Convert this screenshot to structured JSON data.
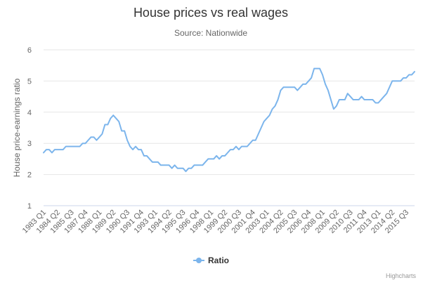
{
  "chart_data": {
    "type": "line",
    "title": "House prices vs real wages",
    "subtitle": "Source: Nationwide",
    "ylabel": "House price-earnings ratio",
    "xlabel": "",
    "ylim": [
      1,
      6
    ],
    "yticks": [
      "1",
      "2",
      "3",
      "4",
      "5",
      "6"
    ],
    "grid": true,
    "legend_position": "bottom-center",
    "credits": "Highcharts",
    "colors": {
      "series": "#7cb5ec",
      "grid": "#e6e6e6",
      "title": "#333333",
      "text": "#666666",
      "credits": "#999999"
    },
    "x_tick_labels": [
      "1983 Q1",
      "1984 Q2",
      "1985 Q3",
      "1987 Q4",
      "1988 Q1",
      "1989 Q2",
      "1990 Q3",
      "1991 Q4",
      "1993 Q1",
      "1994 Q2",
      "1995 Q3",
      "1996 Q4",
      "1998 Q1",
      "1999 Q2",
      "2000 Q3",
      "2001 Q4",
      "2003 Q1",
      "2004 Q2",
      "2005 Q3",
      "2006 Q4",
      "2008 Q1",
      "2009 Q2",
      "2010 Q3",
      "2011 Q4",
      "2013 Q1",
      "2014 Q2",
      "2015 Q3"
    ],
    "series": [
      {
        "name": "Ratio",
        "values": [
          2.7,
          2.8,
          2.8,
          2.7,
          2.8,
          2.8,
          2.8,
          2.8,
          2.9,
          2.9,
          2.9,
          2.9,
          2.9,
          2.9,
          3.0,
          3.0,
          3.1,
          3.2,
          3.2,
          3.1,
          3.2,
          3.3,
          3.6,
          3.6,
          3.8,
          3.9,
          3.8,
          3.7,
          3.4,
          3.4,
          3.1,
          2.9,
          2.8,
          2.9,
          2.8,
          2.8,
          2.6,
          2.6,
          2.5,
          2.4,
          2.4,
          2.4,
          2.3,
          2.3,
          2.3,
          2.3,
          2.2,
          2.3,
          2.2,
          2.2,
          2.2,
          2.1,
          2.2,
          2.2,
          2.3,
          2.3,
          2.3,
          2.3,
          2.4,
          2.5,
          2.5,
          2.5,
          2.6,
          2.5,
          2.6,
          2.6,
          2.7,
          2.8,
          2.8,
          2.9,
          2.8,
          2.9,
          2.9,
          2.9,
          3.0,
          3.1,
          3.1,
          3.3,
          3.5,
          3.7,
          3.8,
          3.9,
          4.1,
          4.2,
          4.4,
          4.7,
          4.8,
          4.8,
          4.8,
          4.8,
          4.8,
          4.7,
          4.8,
          4.9,
          4.9,
          5.0,
          5.1,
          5.4,
          5.4,
          5.4,
          5.2,
          4.9,
          4.7,
          4.4,
          4.1,
          4.2,
          4.4,
          4.4,
          4.4,
          4.6,
          4.5,
          4.4,
          4.4,
          4.4,
          4.5,
          4.4,
          4.4,
          4.4,
          4.4,
          4.3,
          4.3,
          4.4,
          4.5,
          4.6,
          4.8,
          5.0,
          5.0,
          5.0,
          5.0,
          5.1,
          5.1,
          5.2,
          5.2,
          5.3
        ]
      }
    ]
  }
}
